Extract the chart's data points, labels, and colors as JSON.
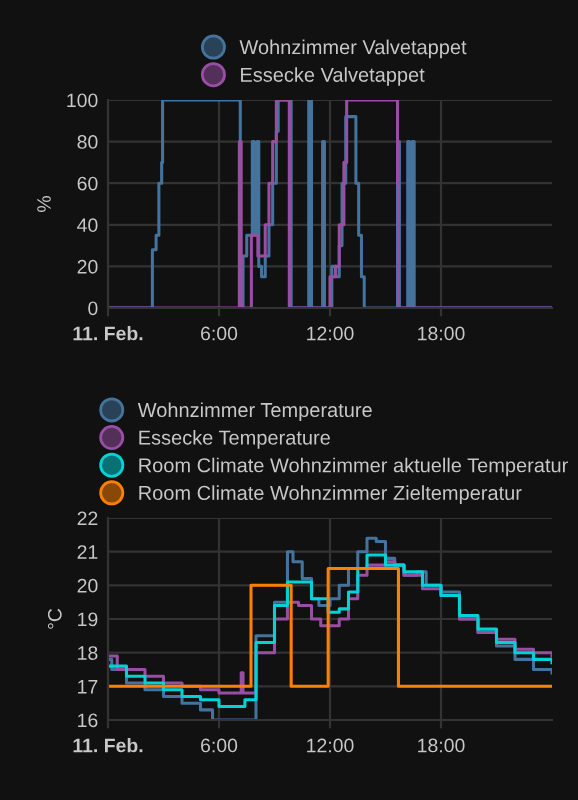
{
  "chart_data": [
    {
      "type": "step",
      "ylabel": "%",
      "xlim": [
        0,
        24
      ],
      "ylim": [
        0,
        100
      ],
      "xticks": [
        {
          "value": 0,
          "label": "11. Feb."
        },
        {
          "value": 6,
          "label": "6:00"
        },
        {
          "value": 12,
          "label": "12:00"
        },
        {
          "value": 18,
          "label": "18:00"
        }
      ],
      "yticks": [
        0,
        20,
        40,
        60,
        80,
        100
      ],
      "grid": true,
      "legend": "top",
      "marker": "none",
      "line_style": "solid",
      "series": [
        {
          "name": "Wohnzimmer Valvetappet",
          "color": "#44739e",
          "x": [
            0,
            2.4,
            2.6,
            2.75,
            2.9,
            2.95,
            7.15,
            7.3,
            7.5,
            7.8,
            7.9,
            8.05,
            8.15,
            8.3,
            8.5,
            8.7,
            8.9,
            9.1,
            9.2,
            9.9,
            10.85,
            11.0,
            11.6,
            11.7,
            12.1,
            12.3,
            12.5,
            12.65,
            12.85,
            13.4,
            13.55,
            13.7,
            13.85,
            14.0,
            15.65,
            15.75,
            16.2,
            16.3,
            16.45,
            16.55,
            24
          ],
          "values": [
            0,
            28,
            35,
            60,
            70,
            100,
            0,
            25,
            35,
            80,
            35,
            80,
            20,
            15,
            25,
            40,
            60,
            85,
            100,
            0,
            100,
            0,
            80,
            0,
            20,
            15,
            30,
            60,
            92,
            60,
            35,
            15,
            0,
            0,
            80,
            0,
            80,
            0,
            80,
            0,
            0
          ]
        },
        {
          "name": "Essecke Valvetappet",
          "color": "#984ea3",
          "x": [
            0,
            7.1,
            7.2,
            7.75,
            8.1,
            8.5,
            8.7,
            8.9,
            9.1,
            9.8,
            12.0,
            12.3,
            12.5,
            12.75,
            12.9,
            15.65,
            15.7,
            24
          ],
          "values": [
            0,
            80,
            0,
            35,
            25,
            40,
            60,
            80,
            100,
            0,
            15,
            20,
            40,
            70,
            100,
            60,
            0,
            0
          ]
        }
      ]
    },
    {
      "type": "step",
      "ylabel": "°C",
      "xlim": [
        0,
        24
      ],
      "ylim": [
        16,
        22
      ],
      "xticks": [
        {
          "value": 0,
          "label": "11. Feb."
        },
        {
          "value": 6,
          "label": "6:00"
        },
        {
          "value": 12,
          "label": "12:00"
        },
        {
          "value": 18,
          "label": "18:00"
        }
      ],
      "yticks": [
        16,
        17,
        18,
        19,
        20,
        21,
        22
      ],
      "grid": true,
      "legend": "top",
      "marker": "none",
      "line_style": "solid",
      "series": [
        {
          "name": "Wohnzimmer Temperature",
          "color": "#44739e",
          "x": [
            0,
            0.2,
            1,
            2,
            3,
            4,
            5,
            5.65,
            8,
            9,
            9.7,
            10,
            10.5,
            11,
            11.4,
            12,
            12.5,
            13,
            13.5,
            14,
            14.5,
            15,
            15.5,
            16,
            16.7,
            17.2,
            18,
            19,
            20,
            21,
            22,
            23,
            24
          ],
          "values": [
            17.8,
            17.5,
            17.1,
            16.9,
            16.7,
            16.5,
            16.3,
            16.0,
            18.5,
            19.5,
            21.0,
            20.7,
            20.2,
            19.6,
            19.4,
            19.6,
            20.0,
            20.5,
            21.0,
            21.4,
            21.3,
            20.8,
            20.6,
            20.3,
            20.4,
            20.0,
            19.8,
            19.0,
            18.6,
            18.2,
            17.8,
            17.5,
            17.4
          ]
        },
        {
          "name": "Essecke Temperature",
          "color": "#984ea3",
          "x": [
            0,
            0.5,
            2,
            3,
            4,
            5,
            6,
            7,
            7.2,
            7.3,
            8,
            9,
            9.7,
            10.3,
            11,
            11.5,
            12.5,
            13,
            13.5,
            14,
            15,
            15.5,
            16,
            17,
            18,
            19,
            20,
            21,
            22,
            23,
            24
          ],
          "values": [
            17.9,
            17.5,
            17.3,
            17.1,
            17.0,
            16.9,
            16.8,
            16.8,
            17.4,
            16.8,
            18.0,
            19.0,
            19.5,
            19.4,
            19.0,
            18.8,
            19.0,
            19.6,
            20.3,
            20.6,
            20.7,
            20.6,
            20.3,
            19.9,
            19.7,
            19.0,
            18.6,
            18.4,
            18.1,
            18.0,
            17.9
          ]
        },
        {
          "name": "Room Climate Wohnzimmer aktuelle Temperatur",
          "color": "#00d2d5",
          "x": [
            0,
            1,
            2,
            3,
            4,
            5,
            6,
            7,
            7.4,
            8,
            9,
            9.7,
            10.3,
            11,
            11.9,
            12.5,
            13,
            13.5,
            14,
            14.5,
            15,
            16,
            17,
            18,
            19,
            20,
            21,
            22,
            23,
            24
          ],
          "values": [
            17.6,
            17.3,
            17.1,
            16.9,
            16.7,
            16.6,
            16.4,
            16.4,
            16.6,
            18.3,
            19.4,
            20.1,
            20.1,
            19.6,
            19.2,
            19.3,
            19.8,
            20.5,
            20.9,
            20.9,
            20.6,
            20.4,
            20.0,
            19.7,
            19.1,
            18.7,
            18.3,
            18.0,
            17.8,
            17.7
          ]
        },
        {
          "name": "Room Climate Wohnzimmer Zieltemperatur",
          "color": "#ff7f00",
          "x": [
            0,
            7.73,
            9.9,
            11.9,
            15.7,
            24
          ],
          "values": [
            17,
            20,
            17,
            20.5,
            17,
            17
          ]
        }
      ]
    }
  ]
}
